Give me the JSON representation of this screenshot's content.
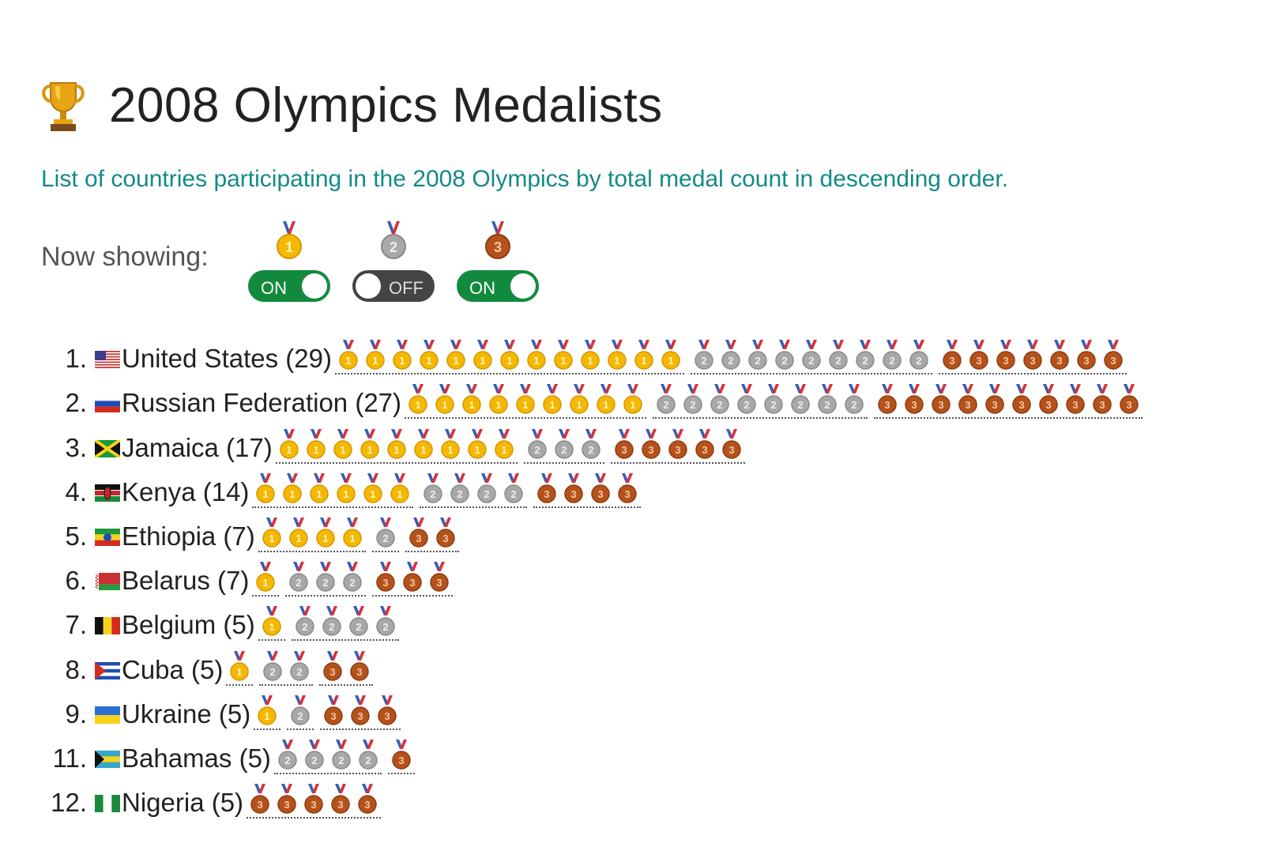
{
  "title": "2008 Olympics Medalists",
  "subtitle": "List of countries participating in the 2008 Olympics by total medal count in descending order.",
  "showing_label": "Now showing:",
  "toggles": [
    {
      "medal": "gold",
      "label": "ON",
      "state": "on"
    },
    {
      "medal": "silver",
      "label": "OFF",
      "state": "off"
    },
    {
      "medal": "bronze",
      "label": "ON",
      "state": "on"
    }
  ],
  "colors": {
    "accent": "#128a88",
    "toggle_on": "#128a3e",
    "toggle_off": "#444444",
    "gold": "#f5b800",
    "silver": "#a8a8a8",
    "bronze": "#b5521b"
  },
  "countries": [
    {
      "rank": "1.",
      "name": "United States (29)",
      "flag": "flag-us",
      "gold": 13,
      "silver": 9,
      "bronze": 7
    },
    {
      "rank": "2.",
      "name": "Russian Federation (27)",
      "flag": "flag-ru",
      "gold": 9,
      "silver": 8,
      "bronze": 10
    },
    {
      "rank": "3.",
      "name": "Jamaica (17)",
      "flag": "flag-jm",
      "gold": 9,
      "silver": 3,
      "bronze": 5
    },
    {
      "rank": "4.",
      "name": "Kenya (14)",
      "flag": "flag-ke",
      "gold": 6,
      "silver": 4,
      "bronze": 4
    },
    {
      "rank": "5.",
      "name": "Ethiopia (7)",
      "flag": "flag-et",
      "gold": 4,
      "silver": 1,
      "bronze": 2
    },
    {
      "rank": "6.",
      "name": "Belarus (7)",
      "flag": "flag-by",
      "gold": 1,
      "silver": 3,
      "bronze": 3
    },
    {
      "rank": "7.",
      "name": "Belgium (5)",
      "flag": "flag-be",
      "gold": 1,
      "silver": 4,
      "bronze": 0
    },
    {
      "rank": "8.",
      "name": "Cuba (5)",
      "flag": "flag-cu",
      "gold": 1,
      "silver": 2,
      "bronze": 2
    },
    {
      "rank": "9.",
      "name": "Ukraine (5)",
      "flag": "flag-ua",
      "gold": 1,
      "silver": 1,
      "bronze": 3
    },
    {
      "rank": "11.",
      "name": "Bahamas (5)",
      "flag": "flag-bs",
      "gold": 0,
      "silver": 4,
      "bronze": 1
    },
    {
      "rank": "12.",
      "name": "Nigeria (5)",
      "flag": "flag-ng",
      "gold": 0,
      "silver": 0,
      "bronze": 5
    }
  ]
}
